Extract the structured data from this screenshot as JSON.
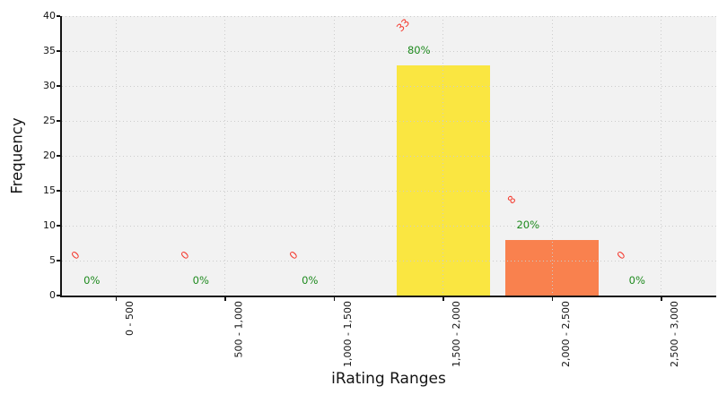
{
  "styles": {
    "plot_bg": "#f2f2f2",
    "grid_color": "#cccccc",
    "spine_color": "#141414",
    "tick_label_color": "#141414",
    "count_label_color": "#f43b30",
    "percent_label_color": "#1e8a1e"
  },
  "chart_data": {
    "type": "bar",
    "title": "",
    "xlabel": "iRating Ranges",
    "ylabel": "Frequency",
    "categories": [
      "0 - 500",
      "500 - 1,000",
      "1,000 - 1,500",
      "1,500 - 2,000",
      "2,000 - 2,500",
      "2,500 - 3,000"
    ],
    "values": [
      0,
      0,
      0,
      33,
      8,
      0
    ],
    "bar_colors": [
      null,
      null,
      null,
      "#fae641",
      "#f9814e",
      null
    ],
    "count_labels": [
      "0",
      "0",
      "0",
      "33",
      "8",
      "0"
    ],
    "percent_labels": [
      "0%",
      "0%",
      "0%",
      "80%",
      "20%",
      "0%"
    ],
    "ylim": [
      0,
      40
    ],
    "yticks": [
      0,
      5,
      10,
      15,
      20,
      25,
      30,
      35,
      40
    ],
    "grid": true,
    "grid_style": "dotted",
    "legend_position": null,
    "x_tick_rotation_deg": 90,
    "count_label_rotation_deg": 45
  }
}
